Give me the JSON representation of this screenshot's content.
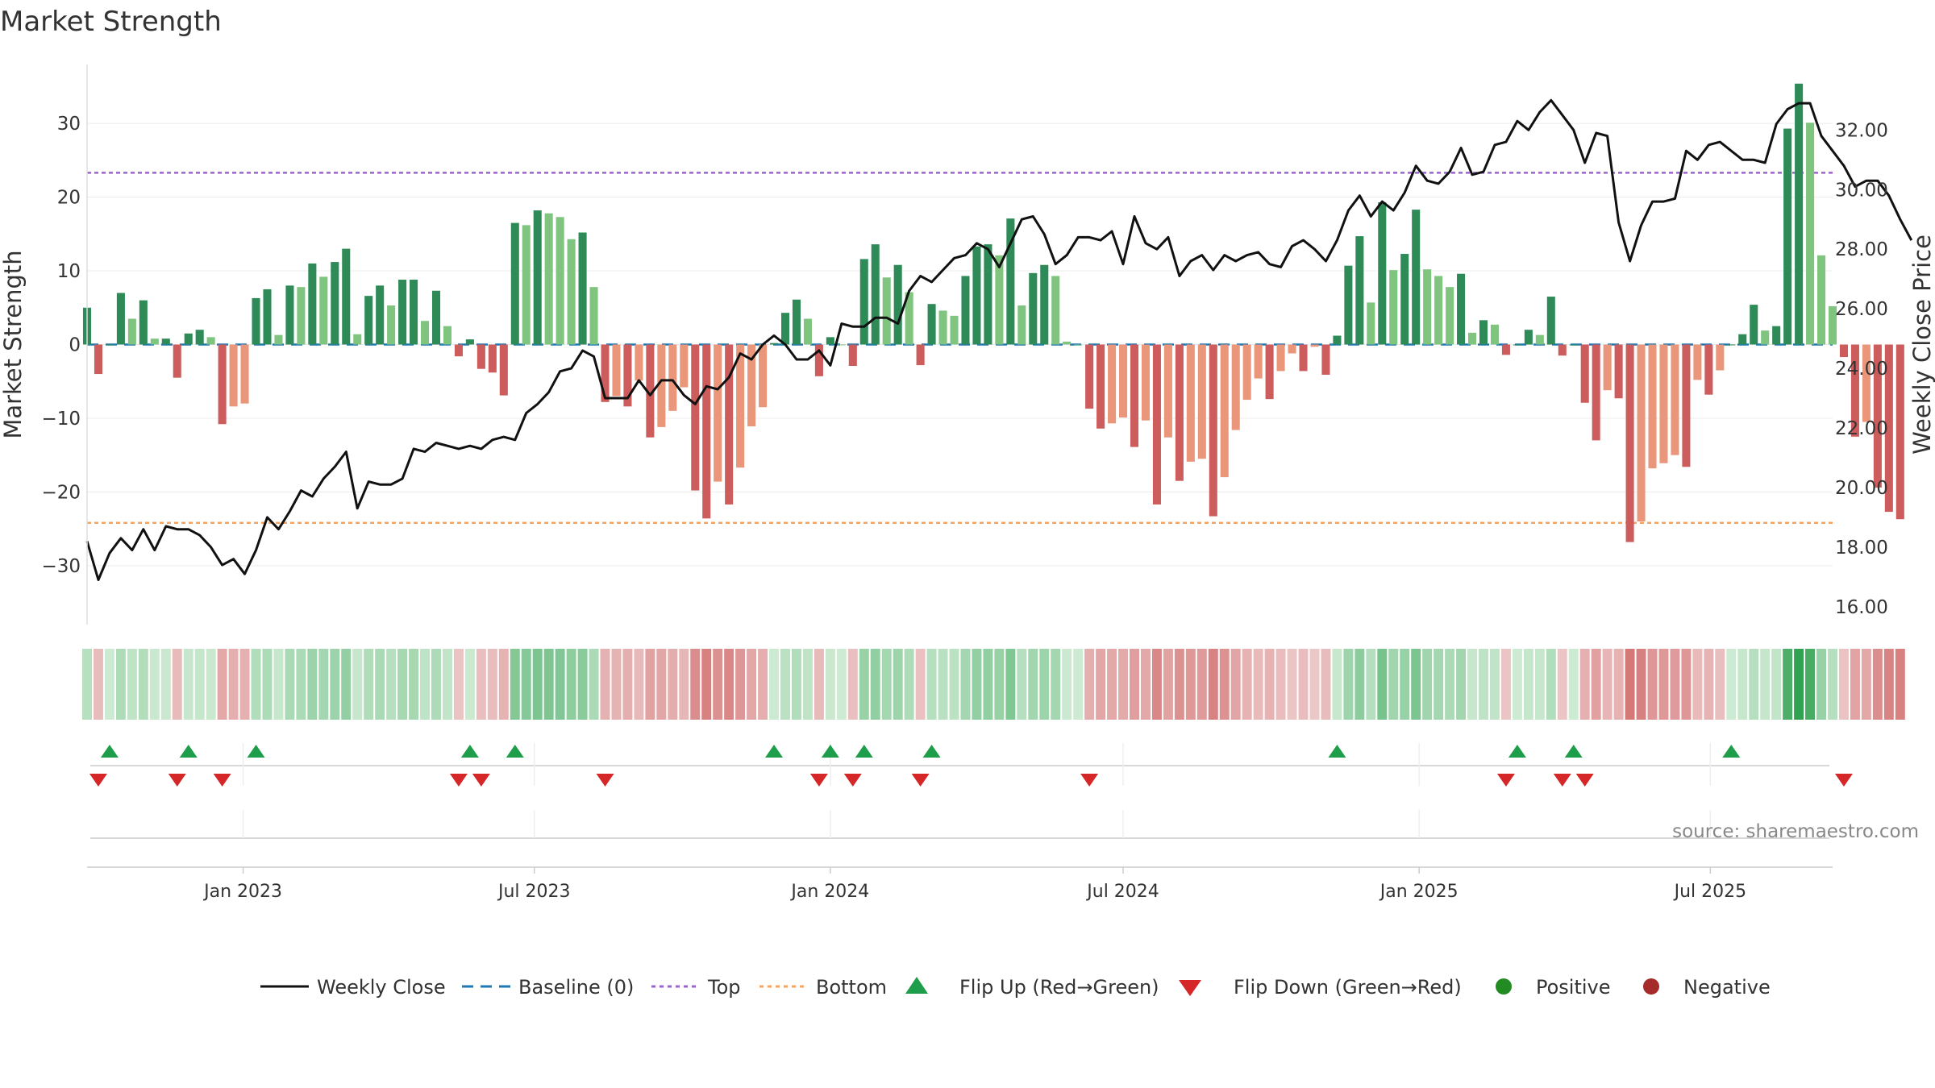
{
  "chart_data": {
    "type": "bar",
    "title": "Market Strength",
    "ylabel_left": "Market Strength",
    "ylabel_right": "Weekly Close Price",
    "source": "source: sharemaestro.com",
    "x_range": [
      "2022-09-26",
      "2025-09-15"
    ],
    "x_ticks": [
      {
        "date": "2023-01-01",
        "label": "Jan 2023"
      },
      {
        "date": "2023-07-01",
        "label": "Jul 2023"
      },
      {
        "date": "2024-01-01",
        "label": "Jan 2024"
      },
      {
        "date": "2024-07-01",
        "label": "Jul 2024"
      },
      {
        "date": "2025-01-01",
        "label": "Jan 2025"
      },
      {
        "date": "2025-07-01",
        "label": "Jul 2025"
      }
    ],
    "y_left": {
      "ticks": [
        -30,
        -20,
        -10,
        0,
        10,
        20,
        30
      ],
      "labels": [
        "−30",
        "−20",
        "−10",
        "0",
        "10",
        "20",
        "30"
      ],
      "range": [
        -38,
        38
      ]
    },
    "y_right": {
      "ticks": [
        16,
        18,
        20,
        22,
        24,
        26,
        28,
        30,
        32
      ],
      "labels": [
        "16.00",
        "18.00",
        "20.00",
        "22.00",
        "24.00",
        "26.00",
        "28.00",
        "30.00",
        "32.00"
      ],
      "range": [
        15.4,
        34.2
      ]
    },
    "top_line": 23.3,
    "bottom_line": -24.2,
    "first_week": "2022-09-26",
    "strength": [
      5,
      -4,
      0,
      7,
      3.5,
      6,
      0.8,
      0.8,
      -4.5,
      1.5,
      2,
      1,
      -10.8,
      -8.4,
      -8,
      6.3,
      7.5,
      1.3,
      8,
      7.8,
      11,
      9.2,
      11.2,
      13,
      1.4,
      6.6,
      8,
      5.3,
      8.8,
      8.8,
      3.2,
      7.3,
      2.5,
      -1.6,
      0.7,
      -3.3,
      -3.8,
      -6.9,
      16.5,
      16.2,
      18.2,
      17.8,
      17.3,
      14.3,
      15.2,
      7.8,
      -7.8,
      -7,
      -8.4,
      -4.9,
      -12.6,
      -11.2,
      -9,
      -5.8,
      -19.8,
      -23.6,
      -18.6,
      -21.7,
      -16.7,
      -11.1,
      -8.5,
      0.2,
      4.3,
      6.1,
      3.5,
      -4.3,
      1,
      0,
      -2.9,
      11.6,
      13.6,
      9.1,
      10.8,
      7.1,
      -2.8,
      5.5,
      4.6,
      3.9,
      9.3,
      13.3,
      13.6,
      12.1,
      17.1,
      5.3,
      9.7,
      10.8,
      9.3,
      0.4,
      0,
      -8.7,
      -11.4,
      -10.7,
      -9.9,
      -13.9,
      -10.3,
      -21.7,
      -12.6,
      -18.5,
      -15.9,
      -15.5,
      -23.3,
      -18,
      -11.6,
      -7.5,
      -4.6,
      -7.4,
      -3.6,
      -1.2,
      -3.6,
      -0.3,
      -4.1,
      1.2,
      10.7,
      14.7,
      5.7,
      19.3,
      10.1,
      12.3,
      18.3,
      10.2,
      9.3,
      7.8,
      9.6,
      1.6,
      3.3,
      2.7,
      -1.4,
      0,
      2,
      1.3,
      6.5,
      -1.5,
      0,
      -7.9,
      -13,
      -6.2,
      -7.3,
      -26.8,
      -24,
      -16.8,
      -16.1,
      -15,
      -16.6,
      -4.8,
      -6.8,
      -3.5,
      0,
      1.4,
      5.4,
      1.9,
      2.5,
      29.3,
      35.4,
      30.1,
      12.1,
      5.2,
      -1.7,
      -12.5,
      -10.5,
      -19.4,
      -22.7,
      -23.7
    ],
    "weekly_close": [
      18.2,
      16.9,
      17.8,
      18.3,
      17.9,
      18.6,
      17.9,
      18.7,
      18.6,
      18.6,
      18.4,
      18.0,
      17.4,
      17.6,
      17.1,
      17.9,
      19.0,
      18.6,
      19.2,
      19.9,
      19.7,
      20.3,
      20.7,
      21.2,
      19.3,
      20.2,
      20.1,
      20.1,
      20.3,
      21.3,
      21.2,
      21.5,
      21.4,
      21.3,
      21.4,
      21.3,
      21.6,
      21.7,
      21.6,
      22.5,
      22.8,
      23.2,
      23.9,
      24.0,
      24.6,
      24.4,
      23.0,
      23.0,
      23.0,
      23.6,
      23.1,
      23.6,
      23.6,
      23.1,
      22.8,
      23.4,
      23.3,
      23.7,
      24.5,
      24.3,
      24.8,
      25.1,
      24.8,
      24.3,
      24.3,
      24.6,
      24.1,
      25.5,
      25.4,
      25.4,
      25.7,
      25.7,
      25.5,
      26.6,
      27.1,
      26.9,
      27.3,
      27.7,
      27.8,
      28.2,
      28.0,
      27.4,
      28.2,
      29.0,
      29.1,
      28.5,
      27.5,
      27.8,
      28.4,
      28.4,
      28.3,
      28.6,
      27.5,
      29.1,
      28.2,
      28.0,
      28.4,
      27.1,
      27.6,
      27.8,
      27.3,
      27.8,
      27.6,
      27.8,
      27.9,
      27.5,
      27.4,
      28.1,
      28.3,
      28.0,
      27.6,
      28.3,
      29.3,
      29.8,
      29.1,
      29.6,
      29.3,
      29.9,
      30.8,
      30.3,
      30.2,
      30.6,
      31.4,
      30.5,
      30.6,
      31.5,
      31.6,
      32.3,
      32.0,
      32.6,
      33.0,
      32.5,
      32.0,
      30.9,
      31.9,
      31.8,
      28.9,
      27.6,
      28.8,
      29.6,
      29.6,
      29.7,
      31.3,
      31.0,
      31.5,
      31.6,
      31.3,
      31.0,
      31.0,
      30.9,
      32.2,
      32.7,
      32.9,
      32.9,
      31.8,
      31.3,
      30.8,
      30.1,
      30.3,
      30.3,
      29.8,
      29.0,
      28.3
    ]
  },
  "legend": {
    "weekly_close": "Weekly Close",
    "baseline": "Baseline (0)",
    "top": "Top",
    "bottom": "Bottom",
    "flip_up": "Flip Up (Red→Green)",
    "flip_down": "Flip Down (Green→Red)",
    "positive": "Positive",
    "negative": "Negative"
  },
  "colors": {
    "green_strong": "#2e8b57",
    "green_light": "#7fc47f",
    "red_strong": "#cd5c5c",
    "red_light": "#e9967a",
    "top_line": "#9966cc",
    "bottom_line": "#f4a460",
    "baseline": "#1f77b4",
    "close_line": "#111111",
    "flip_up": "#1e9e4a",
    "flip_down": "#d62728",
    "positive": "#228b22",
    "negative": "#a52a2a"
  }
}
